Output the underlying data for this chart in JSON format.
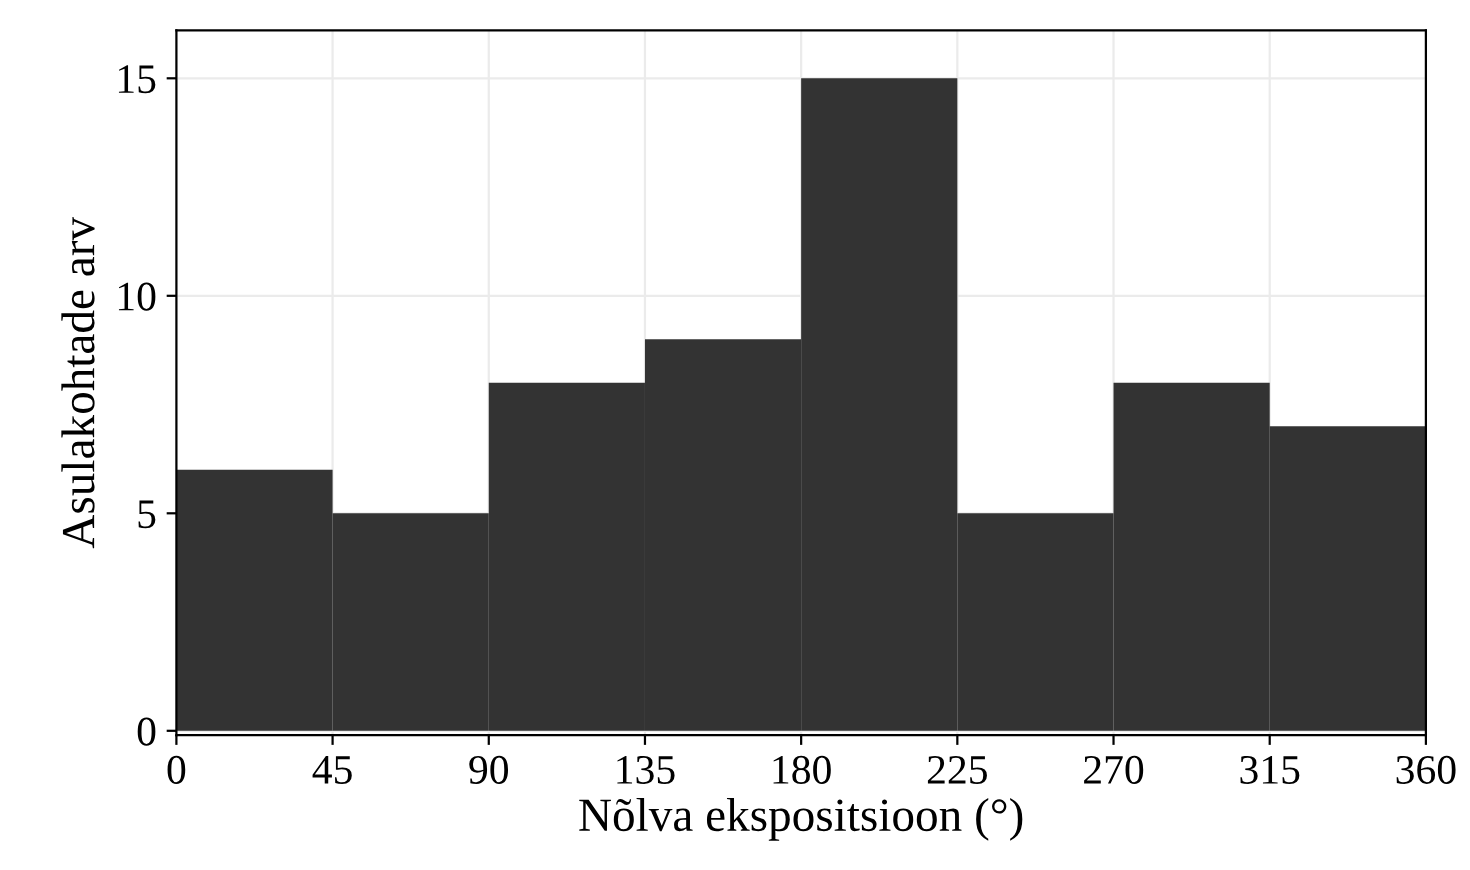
{
  "chart_data": {
    "type": "histogram",
    "xlabel": "Nõlva ekspositsioon (°)",
    "ylabel": "Asulakohtade arv",
    "bins": [
      0,
      45,
      90,
      135,
      180,
      225,
      270,
      315,
      360
    ],
    "values": [
      6,
      5,
      8,
      9,
      15,
      5,
      8,
      7
    ],
    "color": "#333333",
    "xlim": [
      0,
      360
    ],
    "xticks": [
      0,
      45,
      90,
      135,
      180,
      225,
      270,
      315,
      360
    ],
    "ylim": [
      -0.1,
      16.1
    ],
    "yticks": [
      0,
      5,
      10,
      15
    ],
    "grid": true
  }
}
